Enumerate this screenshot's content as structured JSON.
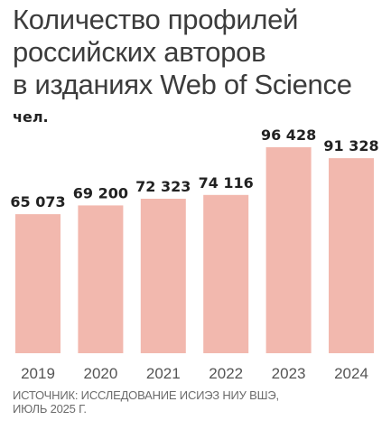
{
  "title_lines": [
    "Количество профилей",
    "российских авторов",
    "в изданиях Web of Science"
  ],
  "unit": "чел.",
  "source_lines": [
    "ИСТОЧНИК: ИССЛЕДОВАНИЕ ИСИЭЗ НИУ ВШЭ,",
    "ИЮЛЬ 2025 Г."
  ],
  "colors": {
    "bar": "#f2b8ae",
    "value_label": "#222222",
    "tick_label": "#555555"
  },
  "chart_data": {
    "type": "bar",
    "categories": [
      "2019",
      "2020",
      "2021",
      "2022",
      "2023",
      "2024"
    ],
    "values": [
      65073,
      69200,
      72323,
      74116,
      96428,
      91328
    ],
    "value_labels": [
      "65 073",
      "69 200",
      "72 323",
      "74 116",
      "96 428",
      "91 328"
    ],
    "title": "Количество профилей российских авторов в изданиях Web of Science",
    "ylabel": "чел.",
    "xlabel": "",
    "grid": false
  }
}
